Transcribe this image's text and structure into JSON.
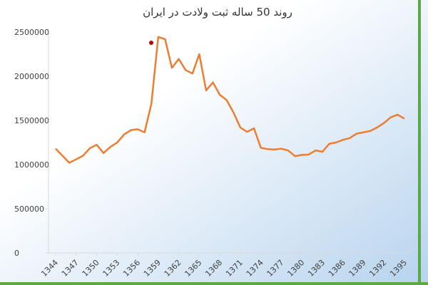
{
  "chart_data": {
    "type": "line",
    "title": "روند 50 ساله ثبت ولادت در ایران",
    "x": [
      1344,
      1345,
      1346,
      1347,
      1348,
      1349,
      1350,
      1351,
      1352,
      1353,
      1354,
      1355,
      1356,
      1357,
      1358,
      1359,
      1360,
      1361,
      1362,
      1363,
      1364,
      1365,
      1366,
      1367,
      1368,
      1369,
      1370,
      1371,
      1372,
      1373,
      1374,
      1375,
      1376,
      1377,
      1378,
      1379,
      1380,
      1381,
      1382,
      1383,
      1384,
      1385,
      1386,
      1387,
      1388,
      1389,
      1390,
      1391,
      1392,
      1393,
      1394,
      1395
    ],
    "series": [
      {
        "color": "#ed7d31",
        "values": [
          1180000,
          1100000,
          1020000,
          1060000,
          1100000,
          1185000,
          1225000,
          1130000,
          1200000,
          1250000,
          1340000,
          1390000,
          1400000,
          1365000,
          1690000,
          2445000,
          2420000,
          2095000,
          2195000,
          2070000,
          2030000,
          2250000,
          1840000,
          1930000,
          1790000,
          1730000,
          1590000,
          1420000,
          1370000,
          1410000,
          1190000,
          1175000,
          1170000,
          1180000,
          1160000,
          1095000,
          1110000,
          1113000,
          1160000,
          1145000,
          1235000,
          1250000,
          1280000,
          1300000,
          1350000,
          1365000,
          1380000,
          1420000,
          1470000,
          1535000,
          1565000,
          1520000
        ]
      }
    ],
    "xlim": [
      1344,
      1395
    ],
    "xticks": [
      1344,
      1347,
      1350,
      1353,
      1356,
      1359,
      1362,
      1365,
      1368,
      1371,
      1374,
      1377,
      1380,
      1383,
      1386,
      1389,
      1392,
      1395
    ],
    "ylim": [
      0,
      2500000
    ],
    "yticks": [
      0,
      500000,
      1000000,
      1500000,
      2000000,
      2500000
    ]
  }
}
